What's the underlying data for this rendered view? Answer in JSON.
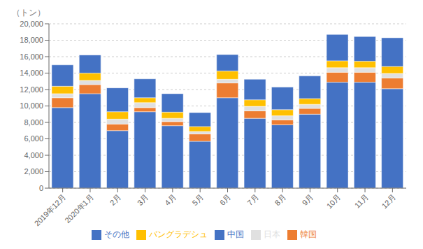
{
  "chart_data": {
    "type": "bar",
    "stacked": true,
    "ylabel": "（トン）",
    "categories": [
      "2019年12月",
      "2020年1月",
      "2月",
      "3月",
      "4月",
      "5月",
      "6月",
      "7月",
      "8月",
      "9月",
      "10月",
      "11月",
      "12月"
    ],
    "series": [
      {
        "name": "中国",
        "color": "#4472c4",
        "values": [
          9800,
          11500,
          7000,
          9300,
          7600,
          5700,
          11000,
          8500,
          7700,
          9000,
          12900,
          12900,
          12100
        ]
      },
      {
        "name": "韓国",
        "color": "#ed7d31",
        "values": [
          1200,
          1100,
          800,
          500,
          500,
          900,
          1800,
          900,
          600,
          700,
          1200,
          1200,
          1300
        ]
      },
      {
        "name": "日本",
        "color": "#e0e0e0",
        "values": [
          500,
          500,
          600,
          600,
          400,
          300,
          450,
          550,
          500,
          500,
          550,
          550,
          550
        ]
      },
      {
        "name": "バングラデシュ",
        "color": "#ffc000",
        "values": [
          900,
          900,
          900,
          600,
          750,
          600,
          1000,
          800,
          750,
          700,
          850,
          800,
          850
        ]
      },
      {
        "name": "その他",
        "color": "#4472c4",
        "values": [
          2600,
          2200,
          2900,
          2300,
          2250,
          1700,
          2000,
          2500,
          2750,
          2750,
          3200,
          3000,
          3500
        ]
      }
    ],
    "ylim": [
      0,
      20000
    ],
    "yticks": [
      0,
      {
        "value": 2000,
        "label": "2,000"
      },
      {
        "value": 4000,
        "label": "4,000"
      },
      {
        "value": 6000,
        "label": "6,000"
      },
      {
        "value": 8000,
        "label": "8,000"
      },
      {
        "value": 10000,
        "label": "10,000"
      },
      {
        "value": 12000,
        "label": "12,000"
      },
      {
        "value": 14000,
        "label": "14,000"
      },
      {
        "value": 16000,
        "label": "16,000"
      },
      {
        "value": 18000,
        "label": "18,000"
      },
      {
        "value": 20000,
        "label": "20,000"
      }
    ],
    "grid": true,
    "legend": "bottom"
  }
}
